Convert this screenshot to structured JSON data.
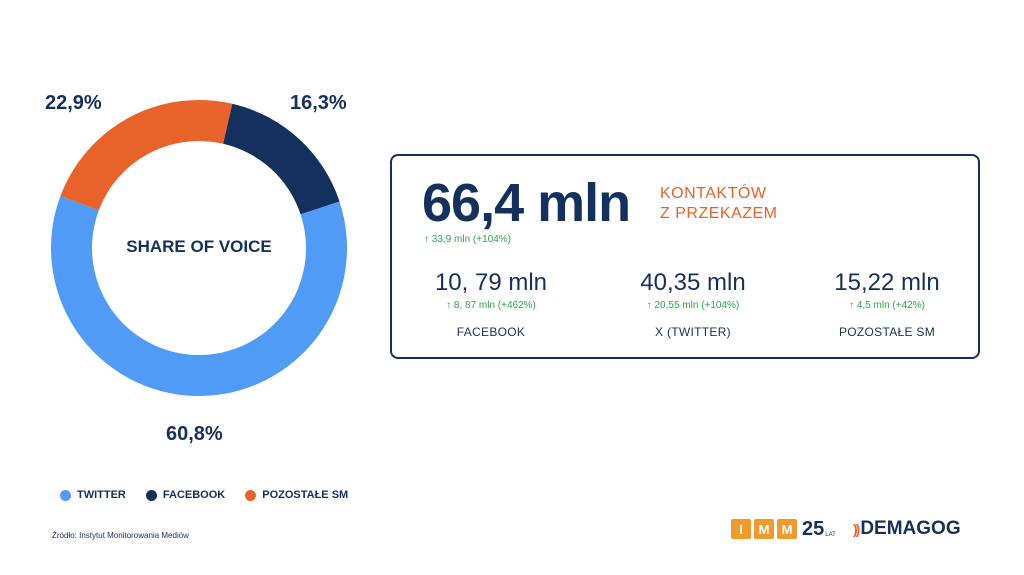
{
  "chart_data": {
    "type": "pie",
    "title": "SHARE OF VOICE",
    "series": [
      {
        "name": "TWITTER",
        "value": 60.8,
        "label": "60,8%",
        "color": "#4f9bf5"
      },
      {
        "name": "FACEBOOK",
        "value": 16.3,
        "label": "16,3%",
        "color": "#14305e"
      },
      {
        "name": "POZOSTAŁE SM",
        "value": 22.9,
        "label": "22,9%",
        "color": "#e8632a"
      }
    ],
    "legend_position": "bottom-left"
  },
  "summary": {
    "total_value": "66,4 mln",
    "total_desc_line1": "KONTAKTÓW",
    "total_desc_line2": "Z PRZEKAZEM",
    "total_change": "↑ 33,9 mln (+104%)",
    "items": [
      {
        "value": "10, 79 mln",
        "change": "↑ 8, 87 mln (+462%)",
        "name": "FACEBOOK"
      },
      {
        "value": "40,35 mln",
        "change": "↑ 20,55 mln (+104%)",
        "name": "X (TWITTER)"
      },
      {
        "value": "15,22 mln",
        "change": "↑ 4,5 mln (+42%)",
        "name": "POZOSTAŁE SM"
      }
    ]
  },
  "source": "Źródło: Instytut Monitorowania Mediów",
  "logos": {
    "imm_letters": [
      "I",
      "M",
      "M"
    ],
    "imm_number": "25",
    "imm_suffix": "LAT",
    "demagog": "DEMAGOG"
  },
  "colors": {
    "accent": "#e8632a",
    "navy": "#14305e",
    "light_blue": "#4f9bf5",
    "green": "#27a745"
  }
}
